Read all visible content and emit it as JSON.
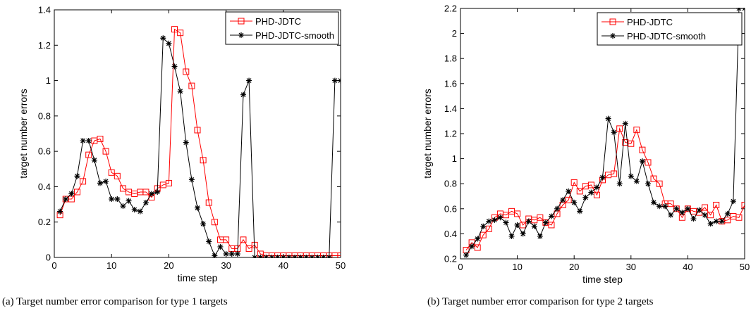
{
  "chart_data": [
    {
      "type": "line",
      "caption": "(a) Target number error comparison for type 1 targets",
      "xlabel": "time step",
      "ylabel": "target number errors",
      "xlim": [
        0,
        50
      ],
      "ylim": [
        0,
        1.4
      ],
      "xticks": [
        0,
        10,
        20,
        30,
        40,
        50
      ],
      "yticks": [
        0,
        0.2,
        0.4,
        0.6,
        0.8,
        1,
        1.2,
        1.4
      ],
      "grid": false,
      "legend": "top-right",
      "series": [
        {
          "name": "PHD-JDTC",
          "color": "#ff0000",
          "marker": "square",
          "x": [
            1,
            2,
            3,
            4,
            5,
            6,
            7,
            8,
            9,
            10,
            11,
            12,
            13,
            14,
            15,
            16,
            17,
            18,
            19,
            20,
            21,
            22,
            23,
            24,
            25,
            26,
            27,
            28,
            29,
            30,
            31,
            32,
            33,
            34,
            35,
            36,
            37,
            38,
            39,
            40,
            41,
            42,
            43,
            44,
            45,
            46,
            47,
            48,
            49,
            50
          ],
          "values": [
            0.24,
            0.33,
            0.33,
            0.37,
            0.43,
            0.58,
            0.66,
            0.67,
            0.6,
            0.48,
            0.46,
            0.39,
            0.37,
            0.36,
            0.37,
            0.37,
            0.34,
            0.39,
            0.41,
            0.42,
            1.29,
            1.27,
            1.05,
            0.97,
            0.72,
            0.55,
            0.31,
            0.2,
            0.1,
            0.1,
            0.05,
            0.05,
            0.1,
            0.05,
            0.07,
            0.02,
            0.01,
            0.01,
            0.01,
            0.01,
            0.01,
            0.01,
            0.01,
            0.01,
            0.01,
            0.01,
            0.01,
            0.01,
            0.01,
            0.01
          ]
        },
        {
          "name": "PHD-JDTC-smooth",
          "color": "#000000",
          "marker": "star",
          "x": [
            1,
            2,
            3,
            4,
            5,
            6,
            7,
            8,
            9,
            10,
            11,
            12,
            13,
            14,
            15,
            16,
            17,
            18,
            19,
            20,
            21,
            22,
            23,
            24,
            25,
            26,
            27,
            28,
            29,
            30,
            31,
            32,
            33,
            34,
            35,
            36,
            37,
            38,
            39,
            40,
            41,
            42,
            43,
            44,
            45,
            46,
            47,
            48,
            49,
            50
          ],
          "values": [
            0.26,
            0.33,
            0.36,
            0.46,
            0.66,
            0.66,
            0.55,
            0.42,
            0.43,
            0.33,
            0.33,
            0.29,
            0.32,
            0.27,
            0.26,
            0.31,
            0.36,
            0.37,
            1.24,
            1.21,
            1.08,
            0.94,
            0.65,
            0.44,
            0.28,
            0.19,
            0.09,
            0.01,
            0.06,
            0.02,
            0.02,
            0.02,
            0.92,
            1.0,
            0,
            0,
            0,
            0,
            0,
            0,
            0,
            0,
            0,
            0,
            0,
            0,
            0,
            0,
            1.0,
            1.0
          ]
        }
      ]
    },
    {
      "type": "line",
      "caption": "(b) Target number error comparison for type 2 targets",
      "xlabel": "time step",
      "ylabel": "target number errors",
      "xlim": [
        0,
        50
      ],
      "ylim": [
        0.2,
        2.2
      ],
      "xticks": [
        0,
        10,
        20,
        30,
        40,
        50
      ],
      "yticks": [
        0.2,
        0.4,
        0.6,
        0.8,
        1,
        1.2,
        1.4,
        1.6,
        1.8,
        2,
        2.2
      ],
      "grid": false,
      "legend": "top-right",
      "series": [
        {
          "name": "PHD-JDTC",
          "color": "#ff0000",
          "marker": "square",
          "x": [
            1,
            2,
            3,
            4,
            5,
            6,
            7,
            8,
            9,
            10,
            11,
            12,
            13,
            14,
            15,
            16,
            17,
            18,
            19,
            20,
            21,
            22,
            23,
            24,
            25,
            26,
            27,
            28,
            29,
            30,
            31,
            32,
            33,
            34,
            35,
            36,
            37,
            38,
            39,
            40,
            41,
            42,
            43,
            44,
            45,
            46,
            47,
            48,
            49,
            50
          ],
          "values": [
            0.27,
            0.33,
            0.29,
            0.39,
            0.44,
            0.53,
            0.56,
            0.55,
            0.58,
            0.56,
            0.47,
            0.52,
            0.51,
            0.53,
            0.49,
            0.47,
            0.56,
            0.63,
            0.67,
            0.81,
            0.74,
            0.78,
            0.79,
            0.71,
            0.83,
            0.87,
            0.88,
            1.24,
            1.13,
            1.12,
            1.23,
            1.07,
            0.97,
            0.84,
            0.8,
            0.64,
            0.64,
            0.6,
            0.53,
            0.6,
            0.58,
            0.57,
            0.61,
            0.55,
            0.63,
            0.5,
            0.51,
            0.54,
            0.53,
            0.63
          ]
        },
        {
          "name": "PHD-JDTC-smooth",
          "color": "#000000",
          "marker": "star",
          "x": [
            1,
            2,
            3,
            4,
            5,
            6,
            7,
            8,
            9,
            10,
            11,
            12,
            13,
            14,
            15,
            16,
            17,
            18,
            19,
            20,
            21,
            22,
            23,
            24,
            25,
            26,
            27,
            28,
            29,
            30,
            31,
            32,
            33,
            34,
            35,
            36,
            37,
            38,
            39,
            40,
            41,
            42,
            43,
            44,
            45,
            46,
            47,
            48,
            49,
            50
          ],
          "values": [
            0.23,
            0.3,
            0.36,
            0.46,
            0.5,
            0.51,
            0.53,
            0.49,
            0.38,
            0.47,
            0.4,
            0.5,
            0.46,
            0.38,
            0.49,
            0.54,
            0.6,
            0.67,
            0.74,
            0.65,
            0.58,
            0.69,
            0.73,
            0.77,
            0.85,
            1.32,
            1.21,
            0.8,
            1.28,
            0.86,
            0.82,
            0.98,
            0.8,
            0.65,
            0.62,
            0.62,
            0.55,
            0.6,
            0.57,
            0.6,
            0.52,
            0.59,
            0.55,
            0.48,
            0.5,
            0.5,
            0.56,
            0.66,
            2.2,
            2.2
          ]
        }
      ]
    }
  ]
}
